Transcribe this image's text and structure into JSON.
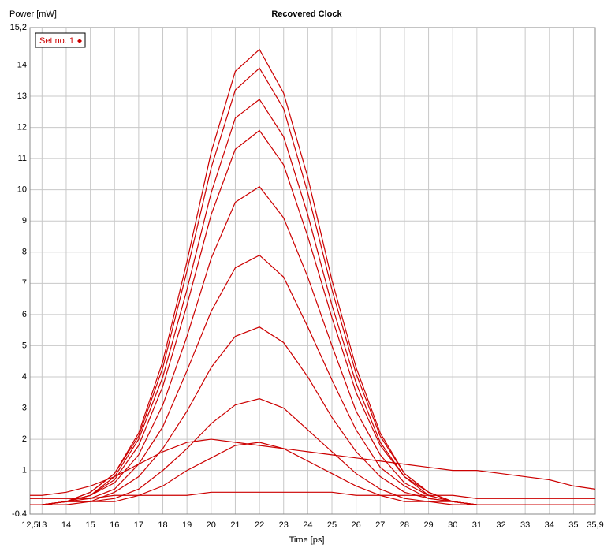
{
  "chart_data": {
    "type": "line",
    "title": "Recovered Clock",
    "x_label": "Time [ps]",
    "y_label": "Power [mW]",
    "grid": true,
    "x": [
      12.5,
      13,
      14,
      15,
      16,
      17,
      18,
      19,
      20,
      21,
      22,
      23,
      24,
      25,
      26,
      27,
      28,
      29,
      30,
      31,
      32,
      33,
      34,
      35,
      35.9
    ],
    "xlim": [
      12.5,
      35.9
    ],
    "xticks": [
      {
        "value": 12.5,
        "label": "12,5"
      },
      13,
      14,
      15,
      16,
      17,
      18,
      19,
      20,
      21,
      22,
      23,
      24,
      25,
      26,
      27,
      28,
      29,
      30,
      31,
      32,
      33,
      34,
      35,
      {
        "value": 35.9,
        "label": "35,9"
      }
    ],
    "ylim": [
      -0.4,
      15.2
    ],
    "yticks": [
      -0.4,
      1,
      2,
      3,
      4,
      5,
      6,
      7,
      8,
      9,
      10,
      11,
      12,
      13,
      14,
      {
        "value": 15.2,
        "label": "15,2"
      }
    ],
    "series": [
      {
        "name": "Set no. 1",
        "color": "#cc0000",
        "traces": [
          [
            -0.1,
            -0.1,
            0.0,
            0.3,
            0.9,
            2.2,
            4.5,
            7.7,
            11.2,
            13.8,
            14.5,
            13.1,
            10.4,
            7.1,
            4.3,
            2.2,
            0.9,
            0.3,
            0.0,
            -0.1,
            -0.1,
            -0.1,
            -0.1,
            -0.1,
            -0.1
          ],
          [
            -0.1,
            -0.1,
            0.0,
            0.3,
            0.9,
            2.1,
            4.3,
            7.4,
            10.7,
            13.2,
            13.9,
            12.6,
            9.9,
            6.8,
            4.1,
            2.1,
            0.9,
            0.3,
            0.0,
            -0.1,
            -0.1,
            -0.1,
            -0.1,
            -0.1,
            -0.1
          ],
          [
            -0.1,
            -0.1,
            0.0,
            0.2,
            0.8,
            2.0,
            4.0,
            6.8,
            9.9,
            12.3,
            12.9,
            11.7,
            9.2,
            6.3,
            3.8,
            1.9,
            0.8,
            0.3,
            0.0,
            -0.1,
            -0.1,
            -0.1,
            -0.1,
            -0.1,
            -0.1
          ],
          [
            -0.1,
            -0.1,
            0.0,
            0.2,
            0.7,
            1.8,
            3.7,
            6.3,
            9.2,
            11.3,
            11.9,
            10.8,
            8.5,
            5.9,
            3.5,
            1.8,
            0.8,
            0.2,
            0.0,
            -0.1,
            -0.1,
            -0.1,
            -0.1,
            -0.1,
            -0.1
          ],
          [
            -0.1,
            -0.1,
            0.0,
            0.2,
            0.6,
            1.5,
            3.1,
            5.3,
            7.8,
            9.6,
            10.1,
            9.1,
            7.2,
            5.0,
            2.9,
            1.5,
            0.6,
            0.2,
            0.0,
            -0.1,
            -0.1,
            -0.1,
            -0.1,
            -0.1,
            -0.1
          ],
          [
            -0.1,
            -0.1,
            0.0,
            0.1,
            0.4,
            1.2,
            2.4,
            4.2,
            6.1,
            7.5,
            7.9,
            7.2,
            5.6,
            3.9,
            2.3,
            1.1,
            0.5,
            0.1,
            0.0,
            -0.1,
            -0.1,
            -0.1,
            -0.1,
            -0.1,
            -0.1
          ],
          [
            -0.1,
            -0.1,
            0.0,
            0.0,
            0.3,
            0.8,
            1.7,
            2.9,
            4.3,
            5.3,
            5.6,
            5.1,
            4.0,
            2.7,
            1.6,
            0.8,
            0.3,
            0.1,
            0.0,
            -0.1,
            -0.1,
            -0.1,
            -0.1,
            -0.1,
            -0.1
          ],
          [
            -0.1,
            -0.1,
            0.0,
            0.0,
            0.1,
            0.4,
            1.0,
            1.7,
            2.5,
            3.1,
            3.3,
            3.0,
            2.3,
            1.6,
            0.9,
            0.4,
            0.1,
            0.0,
            0.0,
            -0.1,
            -0.1,
            -0.1,
            -0.1,
            -0.1,
            -0.1
          ],
          [
            -0.1,
            -0.1,
            -0.1,
            0.0,
            0.0,
            0.2,
            0.5,
            1.0,
            1.4,
            1.8,
            1.9,
            1.7,
            1.3,
            0.9,
            0.5,
            0.2,
            0.0,
            0.0,
            -0.1,
            -0.1,
            -0.1,
            -0.1,
            -0.1,
            -0.1,
            -0.1
          ],
          [
            0.2,
            0.2,
            0.3,
            0.5,
            0.8,
            1.2,
            1.6,
            1.9,
            2.0,
            1.9,
            1.8,
            1.7,
            1.6,
            1.5,
            1.4,
            1.3,
            1.2,
            1.1,
            1.0,
            1.0,
            0.9,
            0.8,
            0.7,
            0.5,
            0.4
          ],
          [
            0.1,
            0.1,
            0.1,
            0.1,
            0.2,
            0.2,
            0.2,
            0.2,
            0.3,
            0.3,
            0.3,
            0.3,
            0.3,
            0.3,
            0.2,
            0.2,
            0.2,
            0.2,
            0.2,
            0.1,
            0.1,
            0.1,
            0.1,
            0.1,
            0.1
          ]
        ]
      }
    ]
  }
}
